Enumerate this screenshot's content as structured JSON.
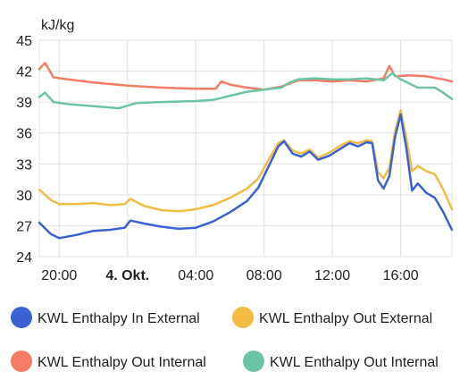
{
  "chart_data": {
    "type": "line",
    "ylabel": "kJ/kg",
    "ylim": [
      24,
      45
    ],
    "yticks": [
      "24",
      "27",
      "30",
      "33",
      "36",
      "39",
      "42",
      "45"
    ],
    "xlim": [
      "2024-10-03T18:50",
      "2024-10-04T19:00"
    ],
    "xticks": [
      {
        "t": "2024-10-03T20:00",
        "label": "20:00",
        "bold": false
      },
      {
        "t": "2024-10-04T00:00",
        "label": "4. Okt.",
        "bold": true
      },
      {
        "t": "2024-10-04T04:00",
        "label": "04:00",
        "bold": false
      },
      {
        "t": "2024-10-04T08:00",
        "label": "08:00",
        "bold": false
      },
      {
        "t": "2024-10-04T12:00",
        "label": "12:00",
        "bold": false
      },
      {
        "t": "2024-10-04T16:00",
        "label": "16:00",
        "bold": false
      }
    ],
    "grid": true,
    "legend": "bottom",
    "series": [
      {
        "name": "KWL Enthalpy In External",
        "color": "#3b61d2",
        "points": [
          [
            "2024-10-03T18:50",
            27.3
          ],
          [
            "2024-10-03T19:30",
            26.2
          ],
          [
            "2024-10-03T20:00",
            25.8
          ],
          [
            "2024-10-03T21:00",
            26.1
          ],
          [
            "2024-10-03T22:00",
            26.5
          ],
          [
            "2024-10-03T23:00",
            26.6
          ],
          [
            "2024-10-03T23:50",
            26.8
          ],
          [
            "2024-10-04T00:10",
            27.5
          ],
          [
            "2024-10-04T01:00",
            27.2
          ],
          [
            "2024-10-04T02:00",
            26.9
          ],
          [
            "2024-10-04T03:00",
            26.7
          ],
          [
            "2024-10-04T04:00",
            26.8
          ],
          [
            "2024-10-04T05:00",
            27.4
          ],
          [
            "2024-10-04T06:00",
            28.3
          ],
          [
            "2024-10-04T07:00",
            29.4
          ],
          [
            "2024-10-04T07:40",
            30.7
          ],
          [
            "2024-10-04T08:20",
            33.0
          ],
          [
            "2024-10-04T08:50",
            34.7
          ],
          [
            "2024-10-04T09:10",
            35.2
          ],
          [
            "2024-10-04T09:40",
            34.0
          ],
          [
            "2024-10-04T10:10",
            33.7
          ],
          [
            "2024-10-04T10:40",
            34.2
          ],
          [
            "2024-10-04T11:10",
            33.4
          ],
          [
            "2024-10-04T11:50",
            33.8
          ],
          [
            "2024-10-04T12:30",
            34.5
          ],
          [
            "2024-10-04T13:00",
            35.0
          ],
          [
            "2024-10-04T13:30",
            34.7
          ],
          [
            "2024-10-04T14:00",
            35.1
          ],
          [
            "2024-10-04T14:20",
            35.0
          ],
          [
            "2024-10-04T14:40",
            31.4
          ],
          [
            "2024-10-04T15:00",
            30.6
          ],
          [
            "2024-10-04T15:20",
            31.8
          ],
          [
            "2024-10-04T15:40",
            35.6
          ],
          [
            "2024-10-04T16:00",
            37.8
          ],
          [
            "2024-10-04T16:20",
            34.5
          ],
          [
            "2024-10-04T16:40",
            30.4
          ],
          [
            "2024-10-04T17:00",
            31.1
          ],
          [
            "2024-10-04T17:30",
            30.2
          ],
          [
            "2024-10-04T18:00",
            29.7
          ],
          [
            "2024-10-04T18:30",
            28.3
          ],
          [
            "2024-10-04T19:00",
            26.6
          ]
        ]
      },
      {
        "name": "KWL Enthalpy Out External",
        "color": "#f2bc44",
        "points": [
          [
            "2024-10-03T18:50",
            30.5
          ],
          [
            "2024-10-03T19:30",
            29.5
          ],
          [
            "2024-10-03T20:00",
            29.1
          ],
          [
            "2024-10-03T21:00",
            29.1
          ],
          [
            "2024-10-03T22:00",
            29.2
          ],
          [
            "2024-10-03T23:00",
            29.0
          ],
          [
            "2024-10-03T23:50",
            29.1
          ],
          [
            "2024-10-04T00:10",
            29.6
          ],
          [
            "2024-10-04T01:00",
            28.9
          ],
          [
            "2024-10-04T02:00",
            28.5
          ],
          [
            "2024-10-04T03:00",
            28.4
          ],
          [
            "2024-10-04T04:00",
            28.6
          ],
          [
            "2024-10-04T05:00",
            29.0
          ],
          [
            "2024-10-04T06:00",
            29.7
          ],
          [
            "2024-10-04T07:00",
            30.6
          ],
          [
            "2024-10-04T07:40",
            31.6
          ],
          [
            "2024-10-04T08:20",
            33.6
          ],
          [
            "2024-10-04T08:50",
            35.0
          ],
          [
            "2024-10-04T09:10",
            35.3
          ],
          [
            "2024-10-04T09:40",
            34.3
          ],
          [
            "2024-10-04T10:10",
            34.0
          ],
          [
            "2024-10-04T10:40",
            34.4
          ],
          [
            "2024-10-04T11:10",
            33.6
          ],
          [
            "2024-10-04T11:50",
            34.1
          ],
          [
            "2024-10-04T12:30",
            34.8
          ],
          [
            "2024-10-04T13:00",
            35.2
          ],
          [
            "2024-10-04T13:30",
            35.0
          ],
          [
            "2024-10-04T14:00",
            35.3
          ],
          [
            "2024-10-04T14:20",
            35.2
          ],
          [
            "2024-10-04T14:40",
            32.2
          ],
          [
            "2024-10-04T15:00",
            31.6
          ],
          [
            "2024-10-04T15:20",
            32.6
          ],
          [
            "2024-10-04T15:40",
            36.2
          ],
          [
            "2024-10-04T16:00",
            38.2
          ],
          [
            "2024-10-04T16:20",
            35.5
          ],
          [
            "2024-10-04T16:40",
            32.3
          ],
          [
            "2024-10-04T17:00",
            32.8
          ],
          [
            "2024-10-04T17:30",
            32.3
          ],
          [
            "2024-10-04T18:00",
            32.0
          ],
          [
            "2024-10-04T18:30",
            30.5
          ],
          [
            "2024-10-04T19:00",
            28.6
          ]
        ]
      },
      {
        "name": "KWL Enthalpy Out Internal",
        "color": "#f47c65",
        "points": [
          [
            "2024-10-03T18:50",
            42.2
          ],
          [
            "2024-10-03T19:10",
            42.8
          ],
          [
            "2024-10-03T19:40",
            41.4
          ],
          [
            "2024-10-03T20:30",
            41.2
          ],
          [
            "2024-10-03T22:00",
            40.9
          ],
          [
            "2024-10-04T00:00",
            40.6
          ],
          [
            "2024-10-04T02:00",
            40.4
          ],
          [
            "2024-10-04T04:00",
            40.3
          ],
          [
            "2024-10-04T05:10",
            40.3
          ],
          [
            "2024-10-04T05:30",
            41.0
          ],
          [
            "2024-10-04T06:00",
            40.7
          ],
          [
            "2024-10-04T07:00",
            40.4
          ],
          [
            "2024-10-04T08:00",
            40.2
          ],
          [
            "2024-10-04T09:00",
            40.5
          ],
          [
            "2024-10-04T10:00",
            41.1
          ],
          [
            "2024-10-04T11:00",
            41.1
          ],
          [
            "2024-10-04T12:00",
            41.0
          ],
          [
            "2024-10-04T13:00",
            41.1
          ],
          [
            "2024-10-04T14:00",
            41.0
          ],
          [
            "2024-10-04T15:00",
            41.3
          ],
          [
            "2024-10-04T15:20",
            42.5
          ],
          [
            "2024-10-04T15:40",
            41.5
          ],
          [
            "2024-10-04T16:30",
            41.6
          ],
          [
            "2024-10-04T17:30",
            41.5
          ],
          [
            "2024-10-04T18:30",
            41.2
          ],
          [
            "2024-10-04T19:00",
            41.0
          ]
        ]
      },
      {
        "name": "KWL Enthalpy Out Internal",
        "color": "#6cc4a7",
        "points": [
          [
            "2024-10-03T18:50",
            39.5
          ],
          [
            "2024-10-03T19:10",
            39.9
          ],
          [
            "2024-10-03T19:40",
            39.0
          ],
          [
            "2024-10-03T20:30",
            38.8
          ],
          [
            "2024-10-03T22:00",
            38.6
          ],
          [
            "2024-10-03T23:30",
            38.4
          ],
          [
            "2024-10-04T00:30",
            38.9
          ],
          [
            "2024-10-04T02:00",
            39.0
          ],
          [
            "2024-10-04T04:00",
            39.1
          ],
          [
            "2024-10-04T05:00",
            39.2
          ],
          [
            "2024-10-04T06:00",
            39.6
          ],
          [
            "2024-10-04T07:00",
            40.0
          ],
          [
            "2024-10-04T08:00",
            40.2
          ],
          [
            "2024-10-04T09:00",
            40.4
          ],
          [
            "2024-10-04T09:30",
            40.9
          ],
          [
            "2024-10-04T10:00",
            41.2
          ],
          [
            "2024-10-04T11:00",
            41.3
          ],
          [
            "2024-10-04T12:00",
            41.2
          ],
          [
            "2024-10-04T13:00",
            41.2
          ],
          [
            "2024-10-04T14:00",
            41.3
          ],
          [
            "2024-10-04T15:00",
            41.1
          ],
          [
            "2024-10-04T15:30",
            41.8
          ],
          [
            "2024-10-04T16:00",
            41.2
          ],
          [
            "2024-10-04T17:00",
            40.4
          ],
          [
            "2024-10-04T18:00",
            40.4
          ],
          [
            "2024-10-04T18:30",
            39.9
          ],
          [
            "2024-10-04T19:00",
            39.3
          ]
        ]
      }
    ]
  }
}
